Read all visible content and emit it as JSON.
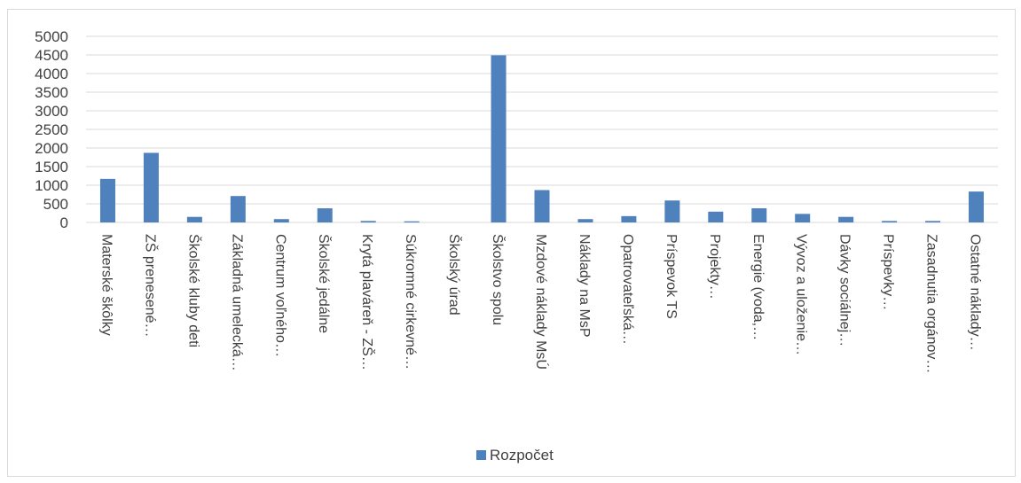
{
  "chart_data": {
    "type": "bar",
    "categories": [
      "Materské škôlky",
      "ZŠ prenesené…",
      "Školské kluby deti",
      "Základná umelecká…",
      "Centrum voľného…",
      "Školské jedálne",
      "Krytá plaváreň - ZŠ…",
      "Súkromné cirkevné…",
      "Školský úrad",
      "Školstvo spolu",
      "Mzdové náklady MsÚ",
      "Náklady na MsP",
      "Opatrovateľská…",
      "Príspevok TS",
      "Projekty…",
      "Energie (voda,…",
      "Vývoz a uloženie…",
      "Dávky sociálnej…",
      "Príspevky…",
      "Zasadnutia orgánov…",
      "Ostatné náklady…"
    ],
    "series": [
      {
        "name": "Rozpočet",
        "color": "#4f81bd",
        "values": [
          1170,
          1870,
          150,
          710,
          90,
          380,
          40,
          30,
          0,
          4490,
          870,
          90,
          170,
          590,
          290,
          380,
          230,
          150,
          40,
          40,
          830
        ]
      }
    ],
    "yticks": [
      "0",
      "500",
      "1000",
      "1500",
      "2000",
      "2500",
      "3000",
      "3500",
      "4000",
      "4500",
      "5000"
    ],
    "ylim": [
      0,
      5000
    ],
    "grid": true,
    "legend_position": "bottom",
    "title": "",
    "xlabel": "",
    "ylabel": ""
  }
}
